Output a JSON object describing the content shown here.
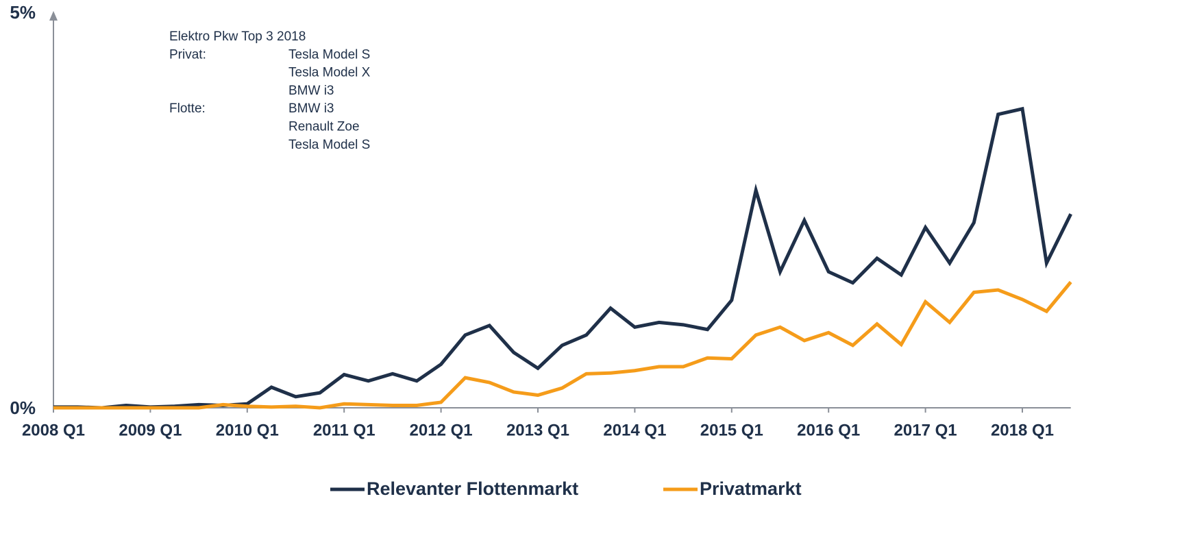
{
  "chart_data": {
    "type": "line",
    "categories": [
      "2008 Q1",
      null,
      null,
      null,
      "2009 Q1",
      null,
      null,
      null,
      "2010 Q1",
      null,
      null,
      null,
      "2011 Q1",
      null,
      null,
      null,
      "2012 Q1",
      null,
      null,
      null,
      "2013 Q1",
      null,
      null,
      null,
      "2014 Q1",
      null,
      null,
      null,
      "2015 Q1",
      null,
      null,
      null,
      "2016 Q1",
      null,
      null,
      null,
      "2017 Q1",
      null,
      null,
      null,
      "2018 Q1",
      null,
      null
    ],
    "series": [
      {
        "name": "Relevanter Flottenmarkt",
        "color": "#1f3049",
        "values": [
          0.01,
          0.01,
          0,
          0.03,
          0.01,
          0.02,
          0.04,
          0.03,
          0.05,
          0.26,
          0.14,
          0.19,
          0.42,
          0.34,
          0.43,
          0.34,
          0.55,
          0.92,
          1.04,
          0.7,
          0.5,
          0.79,
          0.92,
          1.26,
          1.02,
          1.08,
          1.05,
          0.99,
          1.36,
          2.75,
          1.72,
          2.37,
          1.72,
          1.58,
          1.89,
          1.68,
          2.28,
          1.83,
          2.34,
          3.71,
          3.78,
          1.83,
          2.45
        ]
      },
      {
        "name": "Privatmarkt",
        "color": "#f59c1a",
        "values": [
          0,
          0,
          0,
          0,
          0,
          0,
          0,
          0.04,
          0.02,
          0.01,
          0.02,
          0,
          0.05,
          0.04,
          0.03,
          0.03,
          0.07,
          0.38,
          0.32,
          0.2,
          0.16,
          0.25,
          0.43,
          0.44,
          0.47,
          0.52,
          0.52,
          0.63,
          0.62,
          0.92,
          1.02,
          0.85,
          0.95,
          0.79,
          1.06,
          0.8,
          1.34,
          1.08,
          1.46,
          1.49,
          1.37,
          1.22,
          1.59
        ]
      }
    ],
    "ylim": [
      0,
      5
    ],
    "yticks": [
      {
        "value": 0,
        "label": "0%"
      },
      {
        "value": 5,
        "label": "5%"
      }
    ],
    "annotation": {
      "title": "Elektro Pkw Top 3 2018",
      "groups": [
        {
          "label": "Privat:",
          "items": [
            "Tesla Model S",
            "Tesla Model X",
            "BMW i3"
          ]
        },
        {
          "label": "Flotte:",
          "items": [
            "BMW i3",
            "Renault Zoe",
            "Tesla Model S"
          ]
        }
      ]
    }
  }
}
